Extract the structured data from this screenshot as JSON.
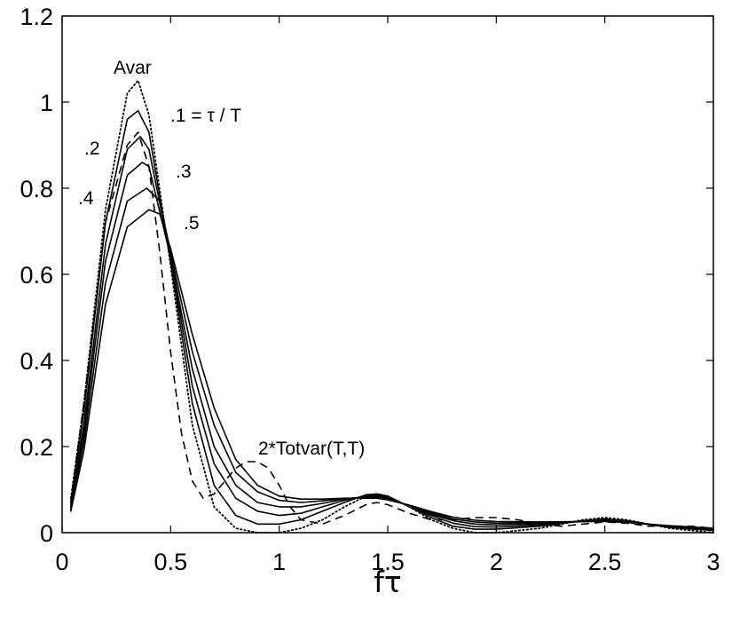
{
  "chart_data": {
    "type": "line",
    "xlabel": "fτ",
    "ylabel": "",
    "xlim": [
      0,
      3
    ],
    "ylim": [
      0,
      1.2
    ],
    "x_ticks": [
      "0",
      "0.5",
      "1",
      "1.5",
      "2",
      "2.5",
      "3"
    ],
    "y_ticks": [
      "0",
      "0.2",
      "0.4",
      "0.6",
      "0.8",
      "1",
      "1.2"
    ],
    "grid": false,
    "annotations": {
      "avar": "Avar",
      "ratio": ".1 = τ / T",
      "r2": ".2",
      "r3": ".3",
      "r4": ".4",
      "r5": ".5",
      "totvar": "2*Totvar(T,T)"
    },
    "series": [
      {
        "style": "dotted",
        "x": [
          0.04,
          0.1,
          0.2,
          0.3,
          0.35,
          0.4,
          0.5,
          0.6,
          0.7,
          0.8,
          0.9,
          1.0,
          1.1,
          1.2,
          1.3,
          1.4,
          1.45,
          1.5,
          1.6,
          1.7,
          1.8,
          1.9,
          2.0,
          2.2,
          2.4,
          2.5,
          2.6,
          2.8,
          3.0
        ],
        "y": [
          0.08,
          0.3,
          0.75,
          1.02,
          1.05,
          0.97,
          0.62,
          0.25,
          0.06,
          0.01,
          0.0,
          0.0,
          0.01,
          0.03,
          0.06,
          0.085,
          0.09,
          0.085,
          0.06,
          0.03,
          0.01,
          0.0,
          0.0,
          0.01,
          0.03,
          0.035,
          0.03,
          0.01,
          0.0
        ]
      },
      {
        "style": "solid",
        "x": [
          0.04,
          0.1,
          0.2,
          0.3,
          0.35,
          0.4,
          0.5,
          0.6,
          0.7,
          0.8,
          0.9,
          1.0,
          1.1,
          1.2,
          1.3,
          1.4,
          1.45,
          1.5,
          1.6,
          1.7,
          1.8,
          1.9,
          2.0,
          2.2,
          2.4,
          2.5,
          2.6,
          2.8,
          3.0
        ],
        "y": [
          0.07,
          0.28,
          0.72,
          0.96,
          0.98,
          0.93,
          0.63,
          0.3,
          0.11,
          0.04,
          0.02,
          0.02,
          0.03,
          0.05,
          0.07,
          0.088,
          0.09,
          0.085,
          0.06,
          0.035,
          0.015,
          0.008,
          0.008,
          0.015,
          0.028,
          0.032,
          0.028,
          0.012,
          0.005
        ]
      },
      {
        "style": "solid",
        "x": [
          0.04,
          0.1,
          0.2,
          0.3,
          0.36,
          0.4,
          0.5,
          0.6,
          0.7,
          0.8,
          0.9,
          1.0,
          1.1,
          1.2,
          1.3,
          1.4,
          1.45,
          1.5,
          1.6,
          1.7,
          1.8,
          1.9,
          2.0,
          2.2,
          2.4,
          2.5,
          2.6,
          2.8,
          3.0
        ],
        "y": [
          0.065,
          0.25,
          0.67,
          0.89,
          0.92,
          0.89,
          0.64,
          0.34,
          0.16,
          0.08,
          0.05,
          0.04,
          0.045,
          0.06,
          0.075,
          0.085,
          0.088,
          0.083,
          0.06,
          0.04,
          0.022,
          0.014,
          0.013,
          0.018,
          0.027,
          0.03,
          0.026,
          0.013,
          0.007
        ]
      },
      {
        "style": "solid",
        "x": [
          0.04,
          0.1,
          0.2,
          0.3,
          0.37,
          0.4,
          0.5,
          0.6,
          0.7,
          0.8,
          0.9,
          1.0,
          1.1,
          1.2,
          1.3,
          1.4,
          1.45,
          1.5,
          1.6,
          1.7,
          1.8,
          1.9,
          2.0,
          2.2,
          2.4,
          2.5,
          2.6,
          2.8,
          3.0
        ],
        "y": [
          0.06,
          0.23,
          0.63,
          0.83,
          0.86,
          0.85,
          0.64,
          0.38,
          0.2,
          0.11,
          0.07,
          0.06,
          0.06,
          0.068,
          0.078,
          0.084,
          0.085,
          0.08,
          0.062,
          0.043,
          0.028,
          0.02,
          0.018,
          0.021,
          0.026,
          0.028,
          0.025,
          0.014,
          0.008
        ]
      },
      {
        "style": "solid",
        "x": [
          0.04,
          0.1,
          0.2,
          0.3,
          0.39,
          0.45,
          0.5,
          0.6,
          0.7,
          0.8,
          0.9,
          1.0,
          1.1,
          1.2,
          1.3,
          1.4,
          1.45,
          1.5,
          1.6,
          1.7,
          1.8,
          1.9,
          2.0,
          2.2,
          2.4,
          2.5,
          2.6,
          2.8,
          3.0
        ],
        "y": [
          0.055,
          0.21,
          0.58,
          0.77,
          0.8,
          0.77,
          0.65,
          0.42,
          0.25,
          0.14,
          0.095,
          0.075,
          0.07,
          0.074,
          0.079,
          0.082,
          0.082,
          0.078,
          0.063,
          0.046,
          0.032,
          0.025,
          0.022,
          0.023,
          0.026,
          0.027,
          0.024,
          0.015,
          0.009
        ]
      },
      {
        "style": "solid",
        "x": [
          0.04,
          0.1,
          0.2,
          0.3,
          0.4,
          0.45,
          0.5,
          0.6,
          0.7,
          0.8,
          0.9,
          1.0,
          1.1,
          1.2,
          1.3,
          1.4,
          1.45,
          1.5,
          1.6,
          1.7,
          1.8,
          1.9,
          2.0,
          2.2,
          2.4,
          2.5,
          2.6,
          2.8,
          3.0
        ],
        "y": [
          0.05,
          0.19,
          0.53,
          0.71,
          0.75,
          0.74,
          0.66,
          0.46,
          0.29,
          0.17,
          0.11,
          0.085,
          0.078,
          0.078,
          0.08,
          0.08,
          0.08,
          0.076,
          0.064,
          0.049,
          0.036,
          0.029,
          0.026,
          0.025,
          0.026,
          0.026,
          0.024,
          0.016,
          0.01
        ]
      },
      {
        "style": "dashed",
        "x": [
          0.04,
          0.1,
          0.2,
          0.3,
          0.35,
          0.4,
          0.45,
          0.5,
          0.55,
          0.6,
          0.65,
          0.7,
          0.75,
          0.8,
          0.85,
          0.9,
          0.95,
          1.0,
          1.05,
          1.1,
          1.2,
          1.3,
          1.4,
          1.45,
          1.5,
          1.6,
          1.7,
          1.8,
          1.9,
          2.0,
          2.1,
          2.2,
          2.3,
          2.4,
          2.5,
          2.6,
          2.7,
          2.8,
          2.9,
          3.0
        ],
        "y": [
          0.07,
          0.3,
          0.72,
          0.9,
          0.93,
          0.85,
          0.65,
          0.42,
          0.23,
          0.12,
          0.08,
          0.09,
          0.12,
          0.15,
          0.165,
          0.165,
          0.15,
          0.11,
          0.06,
          0.03,
          0.02,
          0.04,
          0.065,
          0.07,
          0.065,
          0.045,
          0.03,
          0.03,
          0.035,
          0.035,
          0.03,
          0.02,
          0.015,
          0.02,
          0.025,
          0.022,
          0.015,
          0.015,
          0.015,
          0.01
        ]
      }
    ]
  }
}
